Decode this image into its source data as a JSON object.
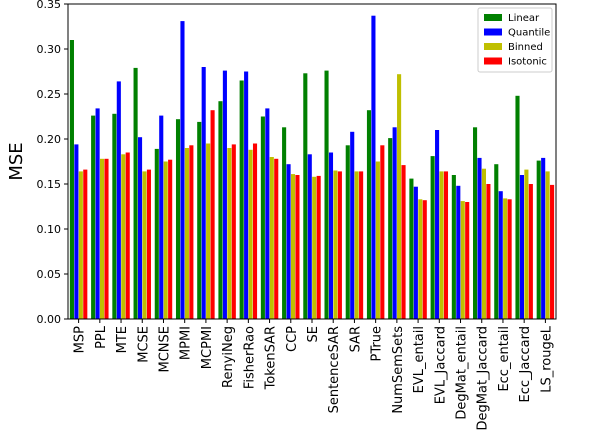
{
  "chart_data": {
    "type": "bar",
    "title": "",
    "xlabel": "",
    "ylabel": "MSE",
    "ylim": [
      0,
      0.35
    ],
    "yticks": [
      "0.00",
      "0.05",
      "0.10",
      "0.15",
      "0.20",
      "0.25",
      "0.30",
      "0.35"
    ],
    "grid": false,
    "legend_position": "top-right",
    "categories": [
      "MSP",
      "PPL",
      "MTE",
      "MCSE",
      "MCNSE",
      "MPMI",
      "MCPMI",
      "RenyiNeg",
      "FisherRao",
      "TokenSAR",
      "CCP",
      "SE",
      "SentenceSAR",
      "SAR",
      "PTrue",
      "NumSemSets",
      "EVL_entail",
      "EVL_Jaccard",
      "DegMat_entail",
      "DegMat_Jaccard",
      "Ecc_entail",
      "Ecc_Jaccard",
      "LS_rougeL"
    ],
    "series": [
      {
        "name": "Linear",
        "color": "#008000",
        "values": [
          0.31,
          0.226,
          0.228,
          0.279,
          0.189,
          0.222,
          0.219,
          0.242,
          0.265,
          0.225,
          0.213,
          0.273,
          0.276,
          0.193,
          0.232,
          0.201,
          0.156,
          0.181,
          0.16,
          0.213,
          0.172,
          0.248,
          0.176
        ]
      },
      {
        "name": "Quantile",
        "color": "#0000ff",
        "values": [
          0.194,
          0.234,
          0.264,
          0.202,
          0.226,
          0.331,
          0.28,
          0.276,
          0.275,
          0.234,
          0.172,
          0.183,
          0.185,
          0.208,
          0.337,
          0.213,
          0.147,
          0.21,
          0.148,
          0.179,
          0.142,
          0.16,
          0.179
        ]
      },
      {
        "name": "Binned",
        "color": "#bfbf00",
        "values": [
          0.164,
          0.178,
          0.183,
          0.164,
          0.175,
          0.19,
          0.195,
          0.19,
          0.188,
          0.18,
          0.161,
          0.158,
          0.165,
          0.164,
          0.175,
          0.272,
          0.133,
          0.164,
          0.131,
          0.167,
          0.134,
          0.166,
          0.164
        ]
      },
      {
        "name": "Isotonic",
        "color": "#ff0000",
        "values": [
          0.166,
          0.178,
          0.185,
          0.166,
          0.177,
          0.193,
          0.232,
          0.194,
          0.195,
          0.178,
          0.16,
          0.159,
          0.164,
          0.164,
          0.193,
          0.171,
          0.132,
          0.164,
          0.13,
          0.15,
          0.133,
          0.15,
          0.149
        ]
      }
    ]
  }
}
